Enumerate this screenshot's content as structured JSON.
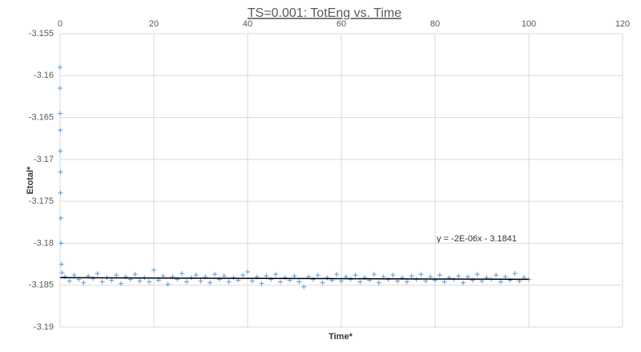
{
  "chart_data": {
    "type": "scatter",
    "title": "TS=0.001: TotEng vs. Time",
    "x_label": "Time*",
    "y_label": "Etotal*",
    "x": [
      0,
      0,
      0.02,
      0.04,
      0.06,
      0.08,
      0.1,
      0.15,
      0.2,
      0.3,
      0.4,
      1,
      2,
      3,
      4,
      5,
      6,
      7,
      8,
      9,
      10,
      11,
      12,
      13,
      14,
      15,
      16,
      17,
      18,
      19,
      20,
      21,
      22,
      23,
      24,
      25,
      26,
      27,
      28,
      29,
      30,
      31,
      32,
      33,
      34,
      35,
      36,
      37,
      38,
      39,
      40,
      41,
      42,
      43,
      44,
      45,
      46,
      47,
      48,
      49,
      50,
      51,
      52,
      53,
      54,
      55,
      56,
      57,
      58,
      59,
      60,
      61,
      62,
      63,
      64,
      65,
      66,
      67,
      68,
      69,
      70,
      71,
      72,
      73,
      74,
      75,
      76,
      77,
      78,
      79,
      80,
      81,
      82,
      83,
      84,
      85,
      86,
      87,
      88,
      89,
      90,
      91,
      92,
      93,
      94,
      95,
      96,
      97,
      98,
      99,
      100
    ],
    "values": [
      -3.159,
      -3.1615,
      -3.1645,
      -3.1665,
      -3.169,
      -3.1715,
      -3.174,
      -3.177,
      -3.18,
      -3.1825,
      -3.1835,
      -3.184,
      -3.1845,
      -3.1838,
      -3.1843,
      -3.1847,
      -3.1839,
      -3.1842,
      -3.1836,
      -3.1846,
      -3.1841,
      -3.1844,
      -3.1838,
      -3.1848,
      -3.184,
      -3.1843,
      -3.1837,
      -3.1845,
      -3.1841,
      -3.1846,
      -3.1832,
      -3.1844,
      -3.1839,
      -3.1849,
      -3.184,
      -3.1843,
      -3.1836,
      -3.1846,
      -3.1841,
      -3.1838,
      -3.1845,
      -3.184,
      -3.1847,
      -3.1837,
      -3.1843,
      -3.1839,
      -3.1846,
      -3.1841,
      -3.1844,
      -3.1838,
      -3.1834,
      -3.1845,
      -3.184,
      -3.1848,
      -3.1839,
      -3.1843,
      -3.1837,
      -3.1846,
      -3.1841,
      -3.1844,
      -3.1839,
      -3.1846,
      -3.1852,
      -3.184,
      -3.1843,
      -3.1838,
      -3.1847,
      -3.1841,
      -3.1844,
      -3.1837,
      -3.1845,
      -3.184,
      -3.1843,
      -3.1838,
      -3.1846,
      -3.1841,
      -3.1844,
      -3.1837,
      -3.1847,
      -3.184,
      -3.1843,
      -3.1838,
      -3.1845,
      -3.1841,
      -3.1846,
      -3.1839,
      -3.1843,
      -3.1837,
      -3.1845,
      -3.184,
      -3.1844,
      -3.1838,
      -3.1846,
      -3.1841,
      -3.1843,
      -3.1839,
      -3.1847,
      -3.184,
      -3.1844,
      -3.1837,
      -3.1845,
      -3.1841,
      -3.1843,
      -3.1838,
      -3.1846,
      -3.184,
      -3.1844,
      -3.1836,
      -3.1845,
      -3.1841,
      -3.1843
    ],
    "color": "#5b9bd5",
    "trendline": {
      "label": "y = -2E-06x - 3.1841",
      "color": "#000000",
      "x": [
        0,
        100
      ],
      "values": [
        -3.1841,
        -3.1843
      ]
    },
    "xlim": [
      0,
      120
    ],
    "xticks": [
      0,
      20,
      40,
      60,
      80,
      100,
      120
    ],
    "ylim": [
      -3.19,
      -3.155
    ],
    "yticks": [
      -3.155,
      -3.16,
      -3.165,
      -3.17,
      -3.175,
      -3.18,
      -3.185,
      -3.19
    ],
    "grid": true
  }
}
